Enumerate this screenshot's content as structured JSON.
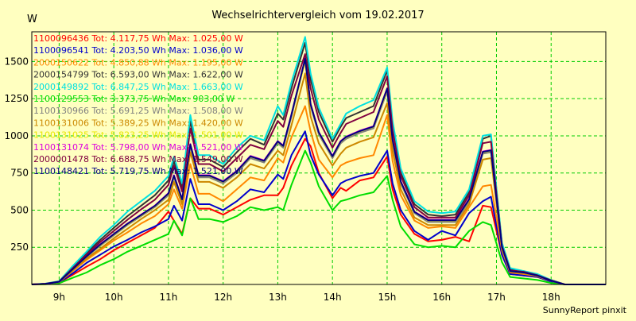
{
  "chart_data": {
    "type": "line",
    "title": "Wechselrichtervergleich vom 19.02.2017",
    "ylabel": "W",
    "footer": "SunnyReport pinxit",
    "ylim": [
      0,
      1700
    ],
    "yticks": [
      250,
      500,
      750,
      1000,
      1250,
      1500
    ],
    "xlim": [
      8.5,
      19.0
    ],
    "xticks": [
      {
        "x": 9,
        "label": "9h"
      },
      {
        "x": 10,
        "label": "10h"
      },
      {
        "x": 11,
        "label": "11h"
      },
      {
        "x": 12,
        "label": "12h"
      },
      {
        "x": 13,
        "label": "13h"
      },
      {
        "x": 14,
        "label": "14h"
      },
      {
        "x": 15,
        "label": "15h"
      },
      {
        "x": 16,
        "label": "16h"
      },
      {
        "x": 17,
        "label": "17h"
      },
      {
        "x": 18,
        "label": "18h"
      }
    ],
    "grid": true,
    "legend_position": "top-left",
    "x": [
      8.5,
      8.75,
      9.0,
      9.25,
      9.5,
      9.75,
      10.0,
      10.25,
      10.5,
      10.75,
      11.0,
      11.1,
      11.25,
      11.4,
      11.55,
      11.75,
      12.0,
      12.25,
      12.5,
      12.75,
      13.0,
      13.1,
      13.25,
      13.5,
      13.6,
      13.75,
      14.0,
      14.15,
      14.25,
      14.5,
      14.75,
      15.0,
      15.1,
      15.25,
      15.5,
      15.75,
      16.0,
      16.25,
      16.5,
      16.75,
      16.9,
      17.1,
      17.25,
      17.5,
      17.75,
      18.0,
      18.25,
      18.5,
      18.75,
      19.0
    ],
    "series": [
      {
        "name": "1100096436 Tot: 4.117,75 Wh Max: 1.025,00 W",
        "color": "#ff0000",
        "values": [
          0,
          2,
          12,
          65,
          120,
          170,
          230,
          280,
          330,
          380,
          490,
          430,
          340,
          580,
          510,
          510,
          470,
          520,
          570,
          600,
          600,
          650,
          800,
          980,
          930,
          750,
          580,
          650,
          630,
          700,
          720,
          860,
          640,
          470,
          340,
          290,
          300,
          320,
          290,
          530,
          520,
          200,
          70,
          60,
          50,
          20,
          0,
          0,
          0,
          0
        ]
      },
      {
        "name": "1100096541 Tot: 4.203,50 Wh Max: 1.036,00 W",
        "color": "#0000cc",
        "values": [
          0,
          3,
          14,
          75,
          145,
          200,
          255,
          300,
          350,
          390,
          440,
          530,
          430,
          710,
          540,
          540,
          500,
          560,
          640,
          620,
          740,
          710,
          870,
          1030,
          870,
          740,
          600,
          680,
          700,
          730,
          750,
          900,
          680,
          500,
          360,
          300,
          360,
          330,
          480,
          560,
          590,
          200,
          70,
          60,
          50,
          20,
          0,
          0,
          0,
          0
        ]
      },
      {
        "name": "2000150622 Tot: 4.850,88 Wh Max: 1.195,00 W",
        "color": "#ff8800",
        "values": [
          0,
          4,
          16,
          90,
          165,
          230,
          295,
          350,
          410,
          460,
          540,
          640,
          510,
          810,
          610,
          610,
          560,
          640,
          720,
          700,
          850,
          820,
          990,
          1200,
          1030,
          840,
          720,
          800,
          820,
          850,
          870,
          1140,
          830,
          600,
          430,
          380,
          390,
          380,
          520,
          660,
          670,
          230,
          80,
          70,
          55,
          25,
          0,
          0,
          0,
          0
        ]
      },
      {
        "name": "2000154799 Tot: 6.593,00 Wh Max: 1.622,00 W",
        "color": "#333333",
        "values": [
          0,
          5,
          20,
          115,
          210,
          300,
          380,
          460,
          530,
          600,
          700,
          830,
          650,
          1100,
          840,
          840,
          790,
          890,
          980,
          940,
          1150,
          1110,
          1320,
          1625,
          1380,
          1160,
          960,
          1060,
          1120,
          1160,
          1200,
          1440,
          1070,
          750,
          540,
          470,
          460,
          470,
          620,
          980,
          1000,
          270,
          100,
          90,
          65,
          30,
          0,
          0,
          0,
          0
        ]
      },
      {
        "name": "2000149892 Tot: 6.847,25 Wh Max: 1.663,00 W",
        "color": "#00e0e0",
        "values": [
          0,
          6,
          22,
          125,
          220,
          320,
          400,
          490,
          560,
          630,
          730,
          860,
          680,
          1140,
          870,
          870,
          810,
          920,
          1000,
          970,
          1200,
          1140,
          1360,
          1665,
          1420,
          1190,
          980,
          1080,
          1150,
          1200,
          1240,
          1460,
          1100,
          780,
          560,
          490,
          480,
          490,
          640,
          1000,
          1010,
          280,
          110,
          90,
          70,
          30,
          0,
          0,
          0,
          0
        ]
      },
      {
        "name": "1100129553 Tot: 3.373,75 Wh Max: 903,00 W",
        "color": "#00dd00",
        "values": [
          0,
          1,
          8,
          45,
          80,
          130,
          170,
          220,
          260,
          300,
          340,
          430,
          330,
          580,
          440,
          440,
          420,
          460,
          520,
          500,
          520,
          500,
          670,
          900,
          820,
          660,
          500,
          560,
          570,
          600,
          620,
          730,
          570,
          390,
          270,
          250,
          260,
          250,
          360,
          420,
          400,
          150,
          50,
          40,
          30,
          10,
          0,
          0,
          0,
          0
        ]
      },
      {
        "name": "1100130966 Tot: 5.691,25 Wh Max: 1.508,00 W",
        "color": "#808080",
        "values": [
          0,
          4,
          18,
          100,
          185,
          260,
          330,
          400,
          460,
          520,
          600,
          720,
          560,
          930,
          720,
          720,
          680,
          750,
          850,
          820,
          950,
          920,
          1130,
          1510,
          1200,
          1010,
          850,
          950,
          980,
          1020,
          1050,
          1300,
          960,
          680,
          480,
          420,
          420,
          420,
          560,
          880,
          890,
          250,
          90,
          80,
          60,
          25,
          0,
          0,
          0,
          0
        ]
      },
      {
        "name": "1100131006 Tot: 5.389,25 Wh Max: 1.420,00 W",
        "color": "#cc8800",
        "values": [
          0,
          4,
          16,
          95,
          175,
          240,
          310,
          375,
          440,
          500,
          570,
          690,
          540,
          890,
          690,
          690,
          650,
          720,
          810,
          780,
          900,
          870,
          1070,
          1420,
          1130,
          950,
          800,
          880,
          920,
          960,
          990,
          1220,
          900,
          640,
          450,
          400,
          400,
          400,
          540,
          840,
          850,
          240,
          85,
          75,
          55,
          25,
          0,
          0,
          0,
          0
        ]
      },
      {
        "name": "1100131025 Tot: 5.823,25 Wh Max: 1.501,00 W",
        "color": "#e8e800",
        "values": [
          0,
          4,
          18,
          105,
          190,
          265,
          335,
          405,
          465,
          525,
          610,
          730,
          570,
          940,
          730,
          730,
          690,
          760,
          860,
          830,
          960,
          930,
          1140,
          1500,
          1210,
          1020,
          860,
          960,
          990,
          1030,
          1060,
          1310,
          970,
          690,
          490,
          430,
          430,
          430,
          570,
          890,
          900,
          250,
          90,
          80,
          60,
          25,
          0,
          0,
          0,
          0
        ]
      },
      {
        "name": "1100131074 Tot: 5.798,00 Wh Max: 1.521,00 W",
        "color": "#dd00dd",
        "values": [
          0,
          4,
          18,
          105,
          190,
          270,
          340,
          410,
          470,
          530,
          615,
          735,
          575,
          945,
          735,
          735,
          695,
          765,
          865,
          835,
          965,
          935,
          1145,
          1520,
          1215,
          1025,
          865,
          965,
          995,
          1035,
          1065,
          1320,
          975,
          695,
          490,
          435,
          435,
          435,
          575,
          895,
          905,
          255,
          90,
          80,
          60,
          25,
          0,
          0,
          0,
          0
        ]
      },
      {
        "name": "2000001478 Tot: 6.688,75 Wh Max: 1.549,00 W",
        "color": "#800040",
        "values": [
          0,
          5,
          20,
          110,
          200,
          285,
          360,
          435,
          505,
          570,
          670,
          800,
          625,
          1050,
          810,
          810,
          760,
          850,
          940,
          910,
          1100,
          1060,
          1270,
          1550,
          1320,
          1110,
          920,
          1020,
          1080,
          1120,
          1160,
          1400,
          1040,
          730,
          520,
          450,
          450,
          450,
          600,
          950,
          960,
          260,
          95,
          85,
          62,
          28,
          0,
          0,
          0,
          0
        ]
      },
      {
        "name": "1100148421 Tot: 5.719,75 Wh Max: 1.521,00 W",
        "color": "#000080",
        "values": [
          0,
          4,
          18,
          103,
          188,
          268,
          338,
          408,
          468,
          528,
          612,
          732,
          572,
          942,
          732,
          732,
          692,
          762,
          862,
          832,
          962,
          932,
          1142,
          1518,
          1212,
          1022,
          862,
          962,
          992,
          1032,
          1062,
          1318,
          972,
          692,
          488,
          432,
          432,
          432,
          572,
          892,
          902,
          252,
          90,
          80,
          60,
          25,
          0,
          0,
          0,
          0
        ]
      }
    ]
  }
}
